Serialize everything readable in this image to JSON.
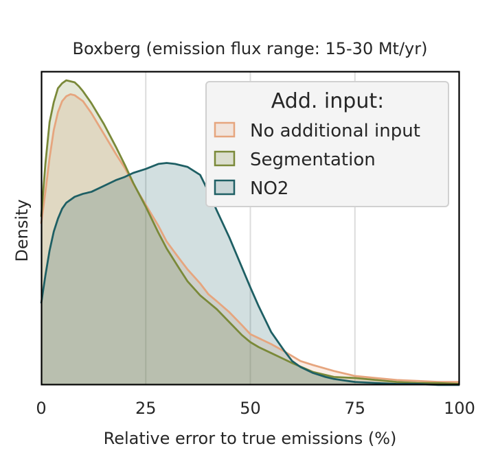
{
  "chart_data": {
    "type": "area",
    "title": "Boxberg (emission flux range: 15-30 Mt/yr)",
    "xlabel": "Relative error to true emissions (%)",
    "ylabel": "Density",
    "xlim": [
      0,
      100
    ],
    "ylim": [
      0,
      0.0315
    ],
    "xticks": [
      0,
      25,
      50,
      75,
      100
    ],
    "xtick_labels": [
      "0",
      "25",
      "50",
      "75",
      "100"
    ],
    "grid": "vertical",
    "legend": {
      "title": "Add. input:",
      "placement": "top-right",
      "entries": [
        "No additional input",
        "Segmentation",
        "NO2"
      ]
    },
    "series": [
      {
        "name": "No additional input",
        "color": "#e6a57e",
        "x": [
          0,
          1,
          2,
          3,
          4,
          5,
          6,
          7,
          8,
          10,
          12,
          15,
          18,
          20,
          22,
          25,
          28,
          30,
          33,
          35,
          38,
          40,
          42,
          45,
          48,
          50,
          52,
          55,
          58,
          60,
          62,
          65,
          70,
          75,
          80,
          85,
          90,
          95,
          100
        ],
        "values": [
          0.0162,
          0.0194,
          0.0228,
          0.0256,
          0.0274,
          0.0285,
          0.029,
          0.0292,
          0.0291,
          0.0285,
          0.0273,
          0.0252,
          0.0231,
          0.0218,
          0.0202,
          0.0181,
          0.016,
          0.0144,
          0.0127,
          0.0116,
          0.0102,
          0.0091,
          0.0084,
          0.0073,
          0.006,
          0.0051,
          0.0047,
          0.0041,
          0.0034,
          0.0029,
          0.0024,
          0.002,
          0.0014,
          0.0009,
          0.0007,
          0.0005,
          0.0004,
          0.0003,
          0.0003
        ]
      },
      {
        "name": "Segmentation",
        "color": "#7a8939",
        "x": [
          0,
          1,
          2,
          3,
          4,
          5,
          6,
          7,
          8,
          9,
          10,
          12,
          15,
          18,
          20,
          22,
          25,
          28,
          30,
          33,
          35,
          38,
          40,
          42,
          45,
          48,
          50,
          52,
          55,
          58,
          60,
          65,
          70,
          75,
          80,
          85,
          90,
          95,
          100
        ],
        "values": [
          0.0169,
          0.0222,
          0.0264,
          0.0284,
          0.0298,
          0.0303,
          0.0306,
          0.0305,
          0.0304,
          0.03,
          0.0295,
          0.0283,
          0.0262,
          0.0238,
          0.0221,
          0.0203,
          0.0179,
          0.0153,
          0.0137,
          0.0117,
          0.0104,
          0.009,
          0.0083,
          0.0076,
          0.0063,
          0.005,
          0.0043,
          0.0038,
          0.0032,
          0.0026,
          0.0022,
          0.0013,
          0.0008,
          0.0007,
          0.0005,
          0.0003,
          0.0002,
          0.0002,
          0.0001
        ]
      },
      {
        "name": "NO2",
        "color": "#1e5f64",
        "x": [
          0,
          1,
          2,
          3,
          4,
          5,
          6,
          8,
          10,
          12,
          15,
          18,
          20,
          22,
          25,
          28,
          30,
          32,
          35,
          38,
          40,
          42,
          45,
          48,
          50,
          52,
          55,
          58,
          60,
          62,
          65,
          68,
          70,
          75,
          80,
          85,
          90,
          95,
          100
        ],
        "values": [
          0.0082,
          0.011,
          0.0135,
          0.0154,
          0.0167,
          0.0177,
          0.0183,
          0.0189,
          0.0192,
          0.0194,
          0.02,
          0.0206,
          0.0209,
          0.0213,
          0.0217,
          0.0222,
          0.0223,
          0.0222,
          0.0219,
          0.0211,
          0.0194,
          0.0175,
          0.0148,
          0.0118,
          0.0098,
          0.0079,
          0.0053,
          0.0035,
          0.0024,
          0.0018,
          0.0012,
          0.0008,
          0.0006,
          0.0003,
          0.0002,
          0.0001,
          0.0001,
          0,
          0
        ]
      }
    ]
  }
}
